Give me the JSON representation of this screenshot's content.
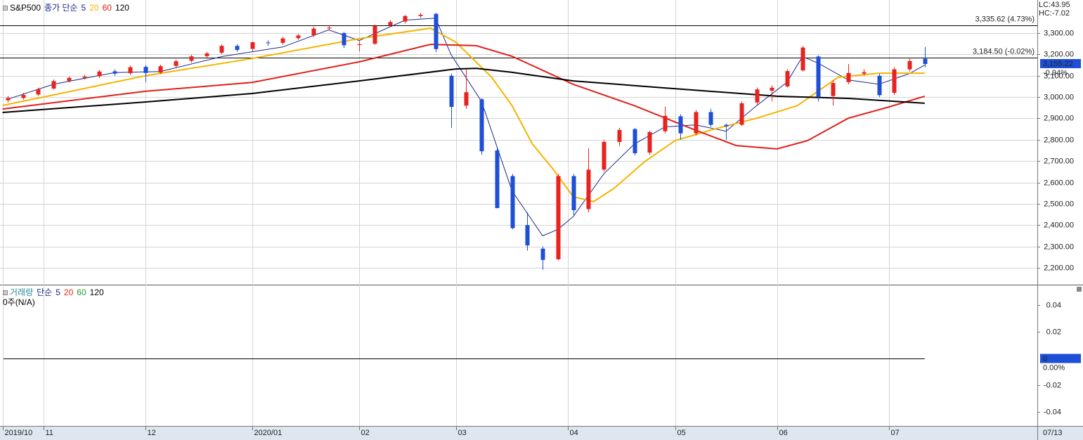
{
  "chart_data": [
    {
      "type": "candlestick",
      "title": "S&P500",
      "legend_title": "종가 단순",
      "x": [
        1,
        4,
        7,
        10,
        13,
        16,
        19,
        22,
        25,
        28,
        31,
        34,
        37,
        40,
        43,
        46,
        49,
        52,
        55,
        58,
        61,
        64,
        67,
        70,
        73,
        76,
        79,
        82,
        85,
        88,
        91,
        94,
        97,
        100,
        103,
        106,
        109,
        112,
        115,
        118,
        121,
        124,
        127,
        130,
        133,
        136,
        139,
        142,
        145,
        148,
        151,
        154,
        157,
        160,
        163,
        166,
        169,
        172,
        175,
        178,
        181
      ],
      "open": [
        2985,
        2996,
        3012,
        3040,
        3076,
        3090,
        3098,
        3121,
        3112,
        3142,
        3115,
        3146,
        3170,
        3192,
        3208,
        3240,
        3226,
        3256,
        3254,
        3276,
        3290,
        3322,
        3300,
        3244,
        3250,
        3336,
        3354,
        3380,
        3390,
        3100,
        2960,
        2990,
        2750,
        2630,
        2400,
        2290,
        2240,
        2630,
        2475,
        2660,
        2790,
        2850,
        2740,
        2840,
        2910,
        2830,
        2930,
        2870,
        2870,
        2975,
        3030,
        3050,
        3125,
        3190,
        3005,
        3070,
        3110,
        3100,
        3020,
        3130,
        3180
      ],
      "high": [
        3005,
        3020,
        3045,
        3083,
        3097,
        3105,
        3128,
        3130,
        3148,
        3150,
        3152,
        3176,
        3198,
        3212,
        3247,
        3248,
        3260,
        3266,
        3282,
        3296,
        3330,
        3337,
        3305,
        3262,
        3340,
        3360,
        3385,
        3394,
        3395,
        3110,
        3130,
        2995,
        2760,
        2640,
        2460,
        2300,
        2640,
        2640,
        2760,
        2800,
        2856,
        2855,
        2842,
        2955,
        2920,
        2940,
        2945,
        2875,
        2980,
        3045,
        3055,
        3130,
        3240,
        3195,
        3080,
        3155,
        3130,
        3110,
        3140,
        3180,
        3235
      ],
      "low": [
        2975,
        2988,
        3005,
        3035,
        3068,
        3082,
        3090,
        3100,
        3105,
        3070,
        3108,
        3140,
        3162,
        3185,
        3200,
        3212,
        3215,
        3240,
        3245,
        3268,
        3282,
        3312,
        3230,
        3214,
        3245,
        3328,
        3345,
        3370,
        3210,
        2855,
        2945,
        2730,
        2478,
        2380,
        2280,
        2191,
        2235,
        2447,
        2460,
        2650,
        2770,
        2727,
        2730,
        2830,
        2800,
        2820,
        2860,
        2800,
        2865,
        2965,
        2980,
        3045,
        3120,
        2980,
        2960,
        3060,
        3100,
        3000,
        3010,
        3120,
        3140
      ],
      "close": [
        2996,
        3010,
        3037,
        3075,
        3090,
        3096,
        3120,
        3110,
        3140,
        3113,
        3145,
        3168,
        3191,
        3205,
        3240,
        3221,
        3257,
        3253,
        3275,
        3289,
        3321,
        3326,
        3243,
        3248,
        3334,
        3352,
        3380,
        3386,
        3225,
        2954,
        3023,
        2746,
        2480,
        2386,
        2305,
        2237,
        2630,
        2470,
        2660,
        2790,
        2846,
        2737,
        2836,
        2912,
        2830,
        2930,
        2870,
        2863,
        2971,
        3036,
        3044,
        3122,
        3232,
        3002,
        3066,
        3113,
        3117,
        3009,
        3130,
        3169,
        3155.22
      ],
      "up_color": "#e8231f",
      "down_color": "#1e4fd6",
      "series": [
        {
          "name": "5",
          "color": "#1b2a8a",
          "x": [
            1,
            10,
            22,
            31,
            43,
            55,
            64,
            70,
            79,
            85,
            88,
            94,
            100,
            106,
            109,
            112,
            118,
            124,
            130,
            136,
            142,
            148,
            154,
            157,
            160,
            166,
            172,
            178,
            181
          ],
          "values": [
            2990,
            3060,
            3115,
            3120,
            3190,
            3235,
            3315,
            3265,
            3360,
            3370,
            3200,
            2980,
            2560,
            2350,
            2380,
            2440,
            2640,
            2780,
            2860,
            2870,
            2840,
            2960,
            3070,
            3190,
            3160,
            3080,
            3060,
            3110,
            3150
          ]
        },
        {
          "name": "20",
          "color": "#f5b400",
          "x": [
            0,
            8,
            28,
            49,
            70,
            84,
            89,
            96,
            100,
            104,
            108,
            112,
            116,
            120,
            126,
            132,
            140,
            148,
            156,
            164,
            172,
            181
          ],
          "values": [
            2961,
            3000,
            3100,
            3181,
            3274,
            3323,
            3257,
            3093,
            2960,
            2780,
            2664,
            2533,
            2510,
            2572,
            2697,
            2796,
            2852,
            2901,
            2960,
            3093,
            3112,
            3112
          ]
        },
        {
          "name": "60",
          "color": "#e0201a",
          "x": [
            0,
            28,
            49,
            70,
            84,
            93,
            100,
            112,
            124,
            136,
            144,
            152,
            158,
            166,
            174,
            181
          ],
          "values": [
            2944,
            3027,
            3069,
            3165,
            3247,
            3241,
            3191,
            3060,
            2960,
            2845,
            2773,
            2757,
            2796,
            2901,
            2954,
            3004
          ]
        },
        {
          "name": "120",
          "color": "#000000",
          "x": [
            0,
            28,
            49,
            70,
            89,
            93,
            100,
            112,
            130,
            152,
            166,
            181
          ],
          "values": [
            2928,
            2977,
            3017,
            3076,
            3132,
            3135,
            3116,
            3076,
            3043,
            3004,
            2994,
            2971
          ]
        }
      ],
      "xlim": [
        -0.5,
        203.1
      ],
      "xticks": [
        {
          "value": 0,
          "label": "2019/10"
        },
        {
          "value": 8,
          "label": "11"
        },
        {
          "value": 28,
          "label": "12"
        },
        {
          "value": 49,
          "label": "2020/01"
        },
        {
          "value": 70,
          "label": "02"
        },
        {
          "value": 89,
          "label": "03"
        },
        {
          "value": 111,
          "label": "04"
        },
        {
          "value": 132,
          "label": "05"
        },
        {
          "value": 152,
          "label": "06"
        },
        {
          "value": 174,
          "label": "07"
        }
      ],
      "ylim": [
        2121,
        3455
      ],
      "yticks": [
        {
          "value": 2200,
          "label": "2,200.00"
        },
        {
          "value": 2300,
          "label": "2,300.00"
        },
        {
          "value": 2400,
          "label": "2,400.00"
        },
        {
          "value": 2500,
          "label": "2,500.00"
        },
        {
          "value": 2600,
          "label": "2,600.00"
        },
        {
          "value": 2700,
          "label": "2,700.00"
        },
        {
          "value": 2800,
          "label": "2,800.00"
        },
        {
          "value": 2900,
          "label": "2,900.00"
        },
        {
          "value": 3000,
          "label": "3,000.00"
        },
        {
          "value": 3100,
          "label": "3,100.00"
        },
        {
          "value": 3200,
          "label": "3,200.00"
        },
        {
          "value": 3300,
          "label": "3,300.00"
        }
      ],
      "grid": true,
      "reference_lines": [
        {
          "value": 3335.62,
          "label": "3,335.62 (4.73%)"
        },
        {
          "value": 3184.5,
          "label": "3,184.50 (-0.02%)"
        }
      ],
      "last_price": {
        "value": 3155.22,
        "label": "3,155.22"
      },
      "last_change": "-0.94%",
      "lc_label": "LC:43.95",
      "hc_label": "HC:-7.02",
      "cursor_date": "07/13"
    },
    {
      "type": "volume",
      "title": "거래량",
      "legend_title": "단순",
      "series": [
        {
          "name": "5",
          "color": "#1b2a8a"
        },
        {
          "name": "20",
          "color": "#e8231f"
        },
        {
          "name": "60",
          "color": "#1f9a2e"
        },
        {
          "name": "120",
          "color": "#000000"
        }
      ],
      "value_text": "0주(N/A)",
      "ylim": [
        -0.0505,
        0.0553
      ],
      "yticks": [
        0.04,
        0.02,
        -0.02,
        -0.04
      ],
      "last_value": 0,
      "last_change": "0.00%"
    }
  ]
}
